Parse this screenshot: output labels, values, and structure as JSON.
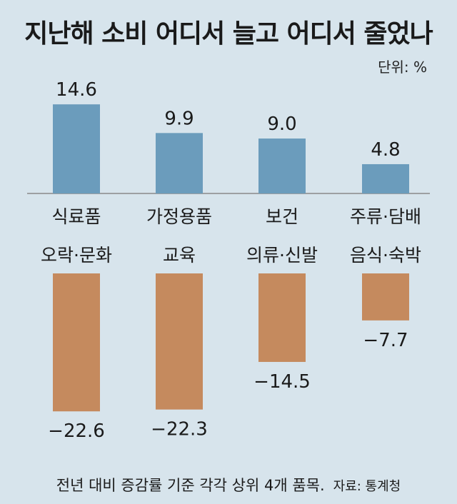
{
  "chart_data": {
    "type": "bar",
    "title": "지난해 소비 어디서 늘고 어디서 줄었나",
    "unit_label": "단위: %",
    "increase": {
      "categories": [
        "식료품",
        "가정용품",
        "보건",
        "주류·담배"
      ],
      "values": [
        14.6,
        9.9,
        9.0,
        4.8
      ],
      "value_labels": [
        "14.6",
        "9.9",
        "9.0",
        "4.8"
      ],
      "color": "#6b9cbc"
    },
    "decrease": {
      "categories": [
        "오락·문화",
        "교육",
        "의류·신발",
        "음식·숙박"
      ],
      "values": [
        -22.6,
        -22.3,
        -14.5,
        -7.7
      ],
      "value_labels": [
        "−22.6",
        "−22.3",
        "−14.5",
        "−7.7"
      ],
      "color": "#c58a5e"
    },
    "legend": false,
    "grid": false
  },
  "footnote": {
    "text": "전년 대비 증감률 기준 각각 상위 4개 품목.",
    "source": "자료: 통계청"
  }
}
